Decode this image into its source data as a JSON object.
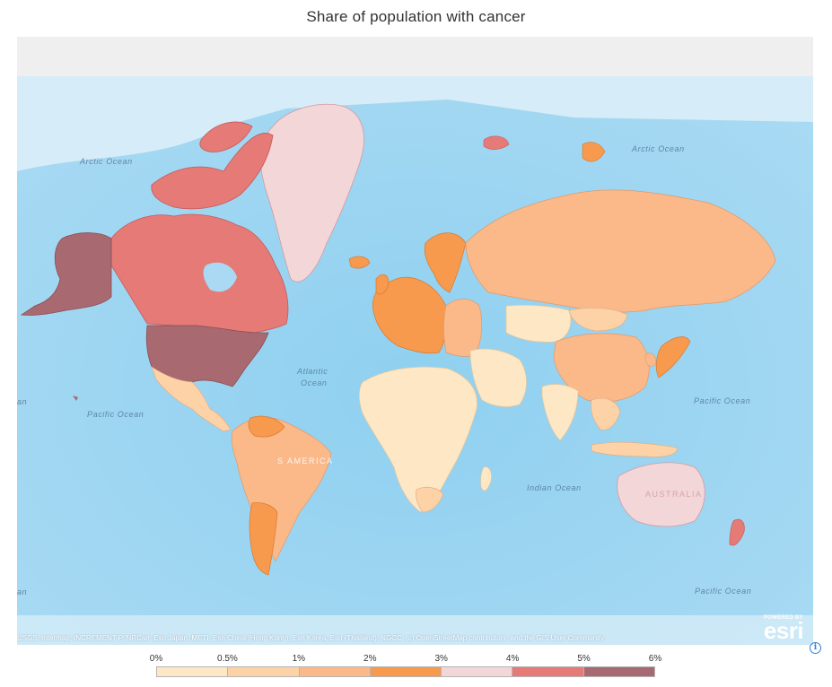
{
  "title": "Share of population with cancer",
  "ocean_labels": {
    "arctic_west": "Arctic Ocean",
    "arctic_east": "Arctic Ocean",
    "atlantic_1": "Atlantic",
    "atlantic_2": "Ocean",
    "pacific_west": "Pacific Ocean",
    "pacific_east_n": "Pacific Ocean",
    "pacific_east_s": "Pacific Ocean",
    "indian": "Indian Ocean",
    "edge_top": "an",
    "edge_bottom": "an"
  },
  "continent_labels": {
    "south_america": "S AMERICA",
    "australia": "AUSTRALIA"
  },
  "attribution": "USGS, Intermap, INCREMENT P, NRCan, Esri Japan, METI, Esri China (Hong Kong), Esri Korea, Esri (Thailand), NGCC, (c) OpenStreetMap contributors, and the GIS User Community",
  "esri_logo": {
    "powered": "POWERED BY",
    "brand": "esri"
  },
  "info_icon": "i",
  "legend": {
    "ticks": [
      "0%",
      "0.5%",
      "1%",
      "2%",
      "3%",
      "4%",
      "5%",
      "6%"
    ],
    "colors": [
      "#fde7c4",
      "#fdd2a7",
      "#fbb98a",
      "#f79a4d",
      "#f3d6d8",
      "#e57a76",
      "#a86a70"
    ]
  },
  "palette": {
    "ocean": "#a9d9f3",
    "ocean_deep": "#84c8ec",
    "sea_ice": "#d9eef8",
    "background": "#efefef"
  },
  "map_colors": {
    "usa": "#a86a70",
    "alaska": "#a86a70",
    "canada": "#e57a76",
    "arctic_islands": "#e57a76",
    "greenland": "#f3d6d8",
    "mexico": "#fdd2a7",
    "south_america": "#fbb98a",
    "argentina": "#f79a4d",
    "western_europe": "#f79a4d",
    "eastern_europe": "#fbb98a",
    "russia": "#fbb98a",
    "africa": "#fde7c4",
    "south_africa": "#fdd2a7",
    "middle_east": "#fde7c4",
    "central_asia": "#fde7c4",
    "china": "#fbb98a",
    "mongolia": "#fdd2a7",
    "india": "#fde7c4",
    "southeast_asia": "#fdd2a7",
    "japan": "#f79a4d",
    "australia": "#f3d6d8",
    "new_zealand": "#e57a76"
  }
}
